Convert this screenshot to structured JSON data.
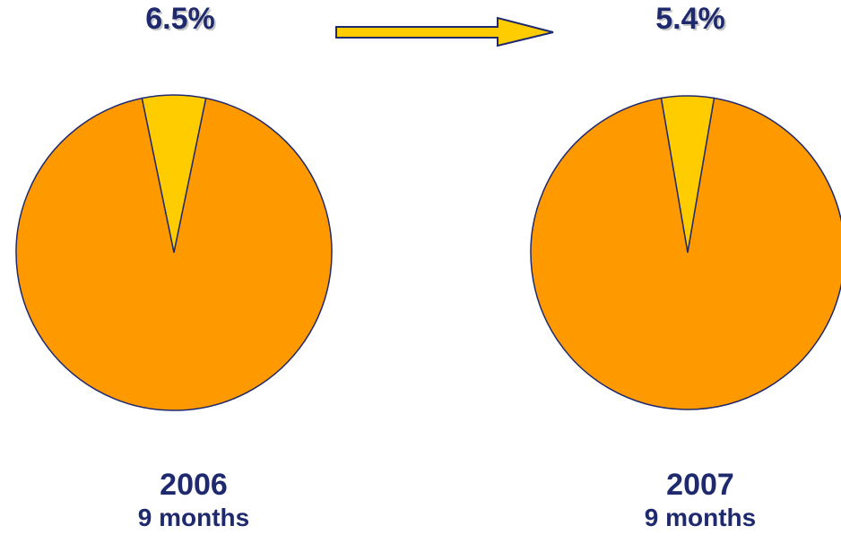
{
  "chart_data": [
    {
      "type": "pie",
      "label_top": "6.5%",
      "year": "2006",
      "period": "9 months",
      "slices": [
        {
          "value": 6.5,
          "color": "#ffcc00"
        },
        {
          "value": 93.5,
          "color": "#ff9900"
        }
      ]
    },
    {
      "type": "pie",
      "label_top": "5.4%",
      "year": "2007",
      "period": "9 months",
      "slices": [
        {
          "value": 5.4,
          "color": "#ffcc00"
        },
        {
          "value": 94.6,
          "color": "#ff9900"
        }
      ]
    }
  ],
  "arrow": {
    "color": "#ffcc00",
    "outline": "#1f2a6e"
  }
}
